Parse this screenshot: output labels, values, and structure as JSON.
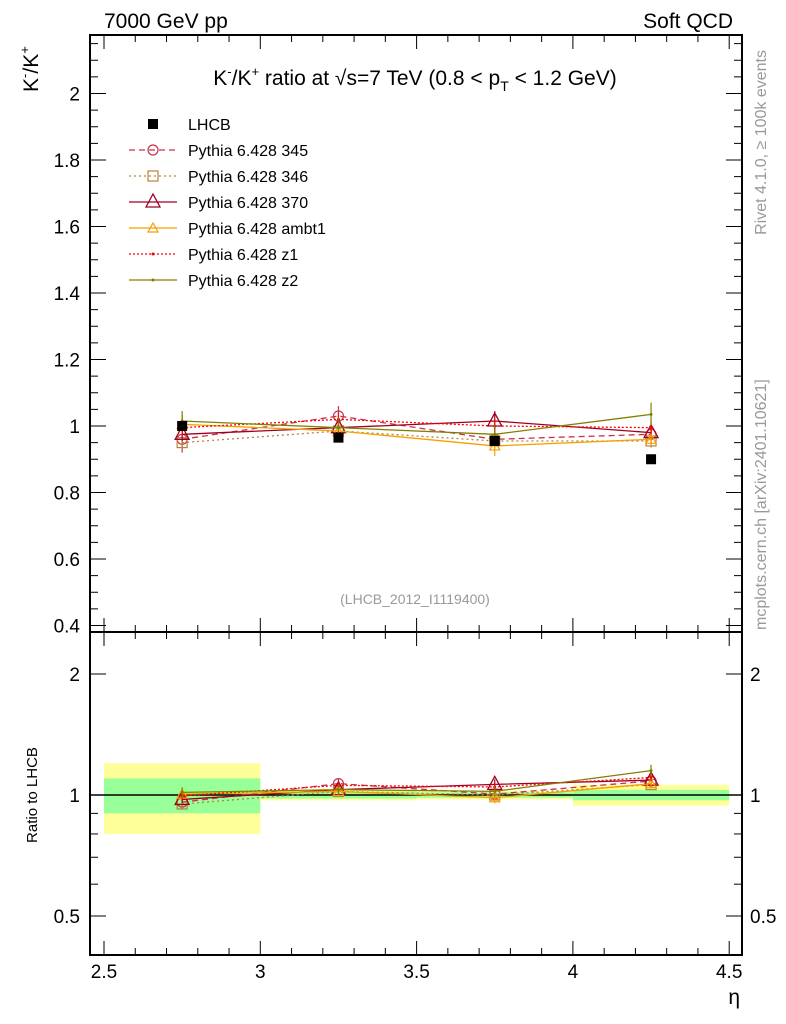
{
  "header": {
    "left": "7000 GeV pp",
    "right": "Soft QCD"
  },
  "side": {
    "rivet": "Rivet 4.1.0, ≥ 100k events",
    "mcplots": "mcplots.cern.ch [arXiv:2401.10621]"
  },
  "chart_data": {
    "type": "scatter",
    "title": "K⁻/K⁺ ratio at √s=7 TeV (0.8 < p_T < 1.2 GeV)",
    "title_parts": {
      "a": "K",
      "b": "-",
      "c": "/K",
      "d": "+",
      "e": " ratio at √s=7 TeV (0.8 < p",
      "f": "T",
      "g": " < 1.2 GeV)"
    },
    "ylabel_parts": {
      "a": "K",
      "b": "-",
      "c": "/K",
      "d": "+"
    },
    "xlabel": "η",
    "ratio_ylabel": "Ratio to LHCB",
    "analysis_id": "(LHCB_2012_I1119400)",
    "xlim": [
      2.45,
      4.53
    ],
    "ylim": [
      0.38,
      2.18
    ],
    "ratio_ylim_log": [
      0.4,
      2.5
    ],
    "x_ticks": [
      "2.5",
      "3",
      "3.5",
      "4",
      "4.5"
    ],
    "y_ticks": [
      "0.4",
      "0.6",
      "0.8",
      "1",
      "1.2",
      "1.4",
      "1.6",
      "1.8",
      "2"
    ],
    "ratio_ticks": [
      "0.5",
      "1",
      "2"
    ],
    "x": [
      2.75,
      3.25,
      3.75,
      4.25
    ],
    "bins": [
      [
        2.5,
        3.0
      ],
      [
        3.0,
        3.5
      ],
      [
        3.5,
        4.0
      ],
      [
        4.0,
        4.5
      ]
    ],
    "data": {
      "name": "LHCB",
      "values": [
        1.0,
        0.965,
        0.955,
        0.9
      ],
      "stat_rel": [
        0.1,
        0.02,
        0.015,
        0.03
      ],
      "tot_rel": [
        0.2,
        0.03,
        0.025,
        0.06
      ]
    },
    "series": [
      {
        "name": "Pythia 6.428 345",
        "color": "#c8324b",
        "dash": "6,4",
        "marker": "circle",
        "values": [
          0.96,
          1.03,
          0.96,
          0.975
        ],
        "err": [
          0.04,
          0.03,
          0.02,
          0.02
        ]
      },
      {
        "name": "Pythia 6.428 346",
        "color": "#b5843e",
        "dash": "2,3",
        "marker": "square",
        "values": [
          0.95,
          0.985,
          0.955,
          0.955
        ],
        "err": [
          0.02,
          0.02,
          0.02,
          0.02
        ]
      },
      {
        "name": "Pythia 6.428 370",
        "color": "#a00020",
        "dash": "",
        "marker": "triangle",
        "values": [
          0.975,
          0.995,
          1.015,
          0.98
        ],
        "err": [
          0.02,
          0.02,
          0.03,
          0.02
        ]
      },
      {
        "name": "Pythia 6.428 ambt1",
        "color": "#f5a000",
        "dash": "",
        "marker": "triangle-small",
        "values": [
          1.005,
          0.985,
          0.94,
          0.96
        ],
        "err": [
          0.03,
          0.02,
          0.03,
          0.02
        ]
      },
      {
        "name": "Pythia 6.428 z1",
        "color": "#ff0000",
        "dash": "2,2",
        "marker": "dot",
        "values": [
          0.995,
          1.02,
          1.0,
          0.995
        ],
        "err": [
          0.02,
          0.02,
          0.02,
          0.02
        ]
      },
      {
        "name": "Pythia 6.428 z2",
        "color": "#808000",
        "dash": "",
        "marker": "dot",
        "values": [
          1.015,
          0.995,
          0.975,
          1.035
        ],
        "err": [
          0.03,
          0.03,
          0.03,
          0.035
        ]
      }
    ],
    "legend_position": "top-left",
    "colors": {
      "band_total": "#ffff99",
      "band_stat": "#99ff99"
    }
  }
}
